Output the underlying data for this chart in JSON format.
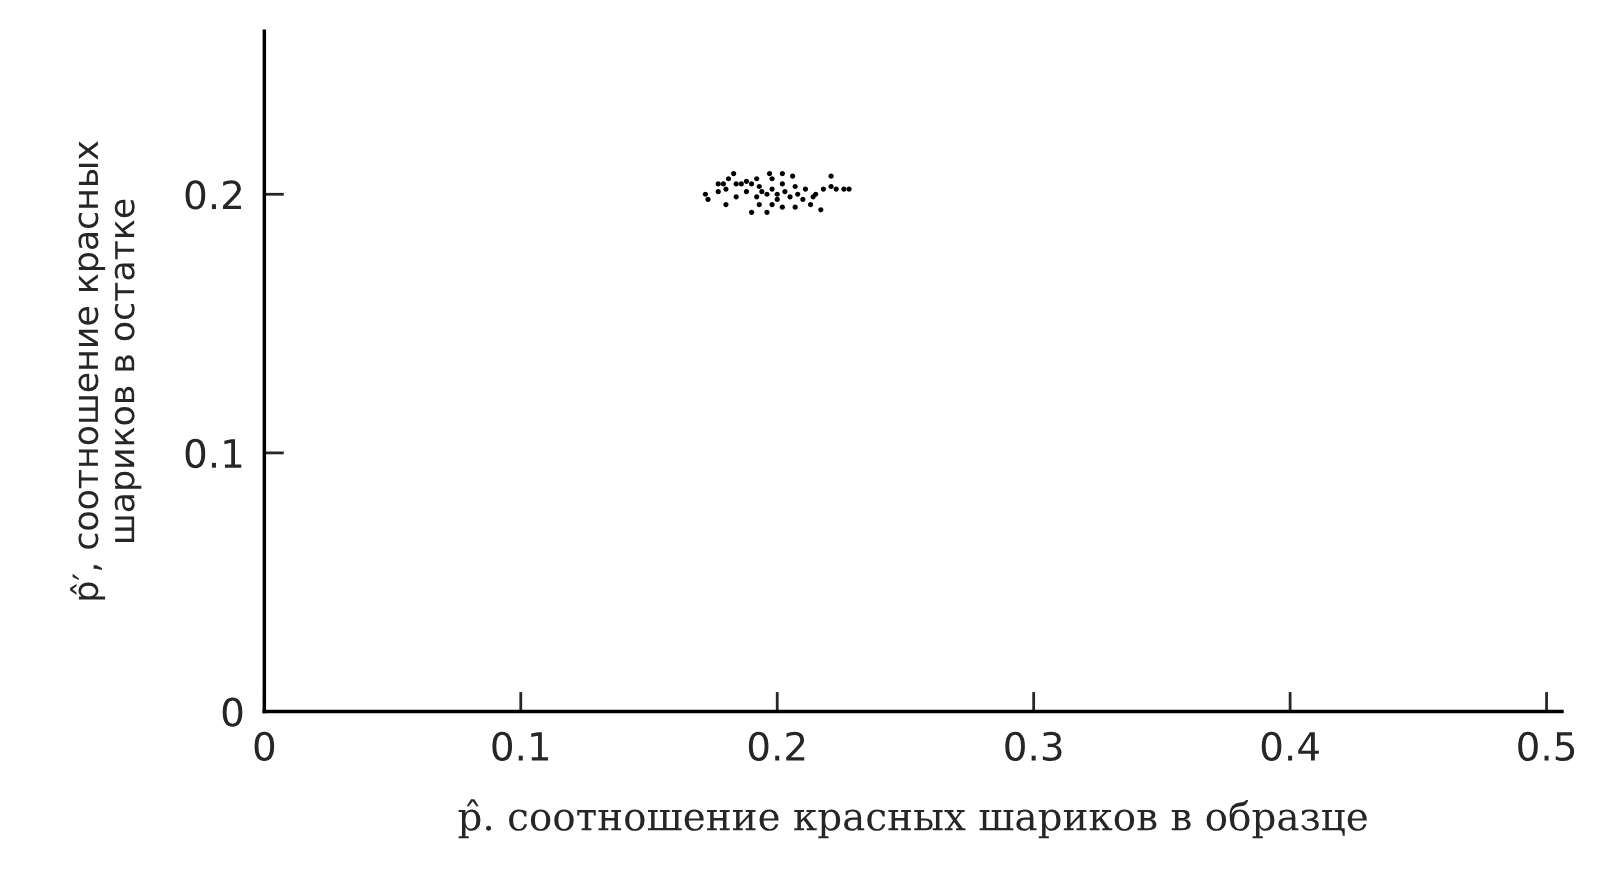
{
  "chart_data": {
    "type": "scatter",
    "xlabel": "p̂. соотношение красных шариков в образце",
    "ylabel": "p̂′, соотношение красных\nшариков в остатке",
    "x": [
      0.177,
      0.179,
      0.18,
      0.172,
      0.173,
      0.177,
      0.181,
      0.183,
      0.184,
      0.186,
      0.188,
      0.19,
      0.192,
      0.193,
      0.194,
      0.196,
      0.197,
      0.198,
      0.198,
      0.2,
      0.2,
      0.202,
      0.202,
      0.203,
      0.205,
      0.206,
      0.207,
      0.208,
      0.21,
      0.211,
      0.213,
      0.214,
      0.215,
      0.217,
      0.218,
      0.221,
      0.223,
      0.226,
      0.228,
      0.221,
      0.19,
      0.196,
      0.202,
      0.207,
      0.18,
      0.184,
      0.188,
      0.192,
      0.198,
      0.193
    ],
    "values": [
      0.204,
      0.204,
      0.202,
      0.2,
      0.198,
      0.201,
      0.206,
      0.208,
      0.204,
      0.204,
      0.205,
      0.204,
      0.206,
      0.203,
      0.201,
      0.2,
      0.208,
      0.206,
      0.202,
      0.2,
      0.198,
      0.208,
      0.204,
      0.201,
      0.199,
      0.207,
      0.203,
      0.2,
      0.198,
      0.202,
      0.196,
      0.199,
      0.2,
      0.194,
      0.202,
      0.203,
      0.202,
      0.202,
      0.202,
      0.207,
      0.193,
      0.193,
      0.195,
      0.195,
      0.196,
      0.199,
      0.201,
      0.199,
      0.196,
      0.196
    ],
    "color": "#000000",
    "marker": "circle",
    "xlim": [
      0,
      0.506
    ],
    "ylim": [
      0,
      0.263
    ],
    "xticks": [
      0,
      0.1,
      0.2,
      0.3,
      0.4,
      0.5
    ],
    "yticks": [
      0,
      0.1,
      0.2
    ],
    "grid": false
  }
}
